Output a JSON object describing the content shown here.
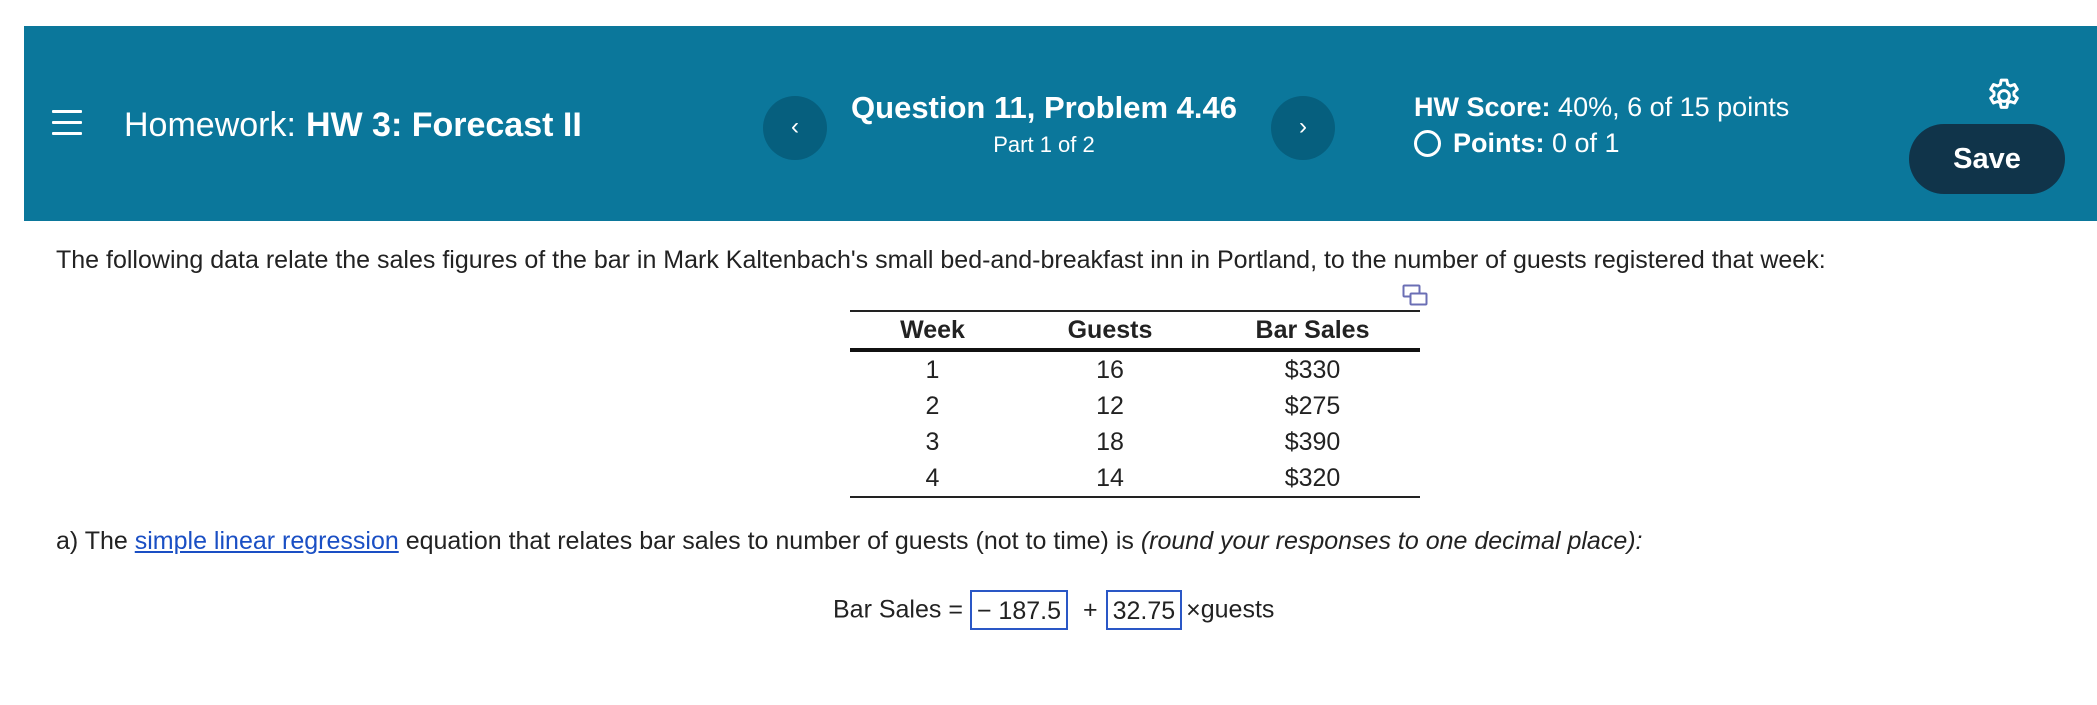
{
  "header": {
    "homework_prefix": "Homework:",
    "homework_name": "HW 3: Forecast II",
    "question_title": "Question 11, Problem 4.46",
    "question_part": "Part 1 of 2",
    "prev_label": "‹",
    "next_label": "›",
    "hw_score_label": "HW Score:",
    "hw_score_value": "40%, 6 of 15 points",
    "points_label": "Points:",
    "points_value": "0 of 1",
    "save_label": "Save",
    "bg_color": "#0b779b"
  },
  "content": {
    "intro": "The following data relate the sales figures of the bar in Mark Kaltenbach's small bed-and-breakfast inn in Portland, to the number of guests registered that week:",
    "table": {
      "headers": [
        "Week",
        "Guests",
        "Bar Sales"
      ],
      "rows": [
        [
          "1",
          "16",
          "$330"
        ],
        [
          "2",
          "12",
          "$275"
        ],
        [
          "3",
          "18",
          "$390"
        ],
        [
          "4",
          "14",
          "$320"
        ]
      ]
    },
    "question_a": {
      "prefix": "a) The ",
      "link": "simple linear regression",
      "middle": " equation that relates bar sales to number of guests (not to time) is ",
      "instruction": "(round your responses to one decimal place):"
    },
    "equation": {
      "lhs": "Bar Sales =",
      "intercept": "− 187.5",
      "plus": "+",
      "slope": "32.75",
      "times": "×",
      "variable": "guests"
    }
  }
}
